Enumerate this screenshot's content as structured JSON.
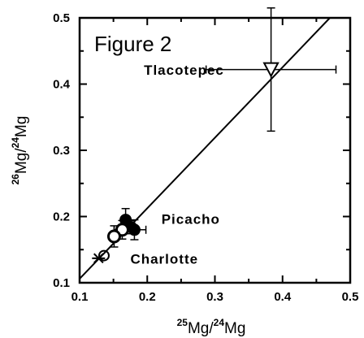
{
  "chart_data": {
    "type": "scatter",
    "title": "Figure 2",
    "xlabel": {
      "sup1": "25",
      "base1": "Mg",
      "slash": "/",
      "sup2": "24",
      "base2": "Mg"
    },
    "ylabel": {
      "sup1": "26",
      "base1": "Mg",
      "slash": "/",
      "sup2": "24",
      "base2": "Mg"
    },
    "xlim": [
      0.1,
      0.5
    ],
    "ylim": [
      0.1,
      0.5
    ],
    "x_ticks": [
      "0.1",
      "0.2",
      "0.3",
      "0.4",
      "0.5"
    ],
    "y_ticks": [
      "0.1",
      "0.2",
      "0.3",
      "0.4",
      "0.5"
    ],
    "grid": false,
    "fit_line": {
      "x": [
        0.1,
        0.47
      ],
      "y": [
        0.106,
        0.5
      ]
    },
    "annotations": [
      {
        "text": "Tlacotepec",
        "x": 0.195,
        "y": 0.414
      },
      {
        "text": "Picacho",
        "x": 0.221,
        "y": 0.189
      },
      {
        "text": "Charlotte",
        "x": 0.175,
        "y": 0.129
      }
    ],
    "series": [
      {
        "marker": "triangle-down-open",
        "points": [
          {
            "x": 0.383,
            "y": 0.422,
            "xerr": 0.096,
            "yerr": 0.093
          }
        ]
      },
      {
        "marker": "circle-filled",
        "points": [
          {
            "x": 0.168,
            "y": 0.195,
            "xerr": 0,
            "yerr": 0.017
          },
          {
            "x": 0.176,
            "y": 0.184,
            "xerr": 0,
            "yerr": 0.01
          },
          {
            "x": 0.181,
            "y": 0.18,
            "xerr": 0.017,
            "yerr": 0.015
          }
        ]
      },
      {
        "marker": "circle-open",
        "points": [
          {
            "x": 0.163,
            "y": 0.18,
            "xerr": 0.012,
            "yerr": 0.014
          },
          {
            "x": 0.151,
            "y": 0.17,
            "xerr": 0,
            "yerr": 0.016
          }
        ]
      },
      {
        "marker": "circle-open-small",
        "points": [
          {
            "x": 0.136,
            "y": 0.141,
            "xerr": 0,
            "yerr": 0
          }
        ]
      },
      {
        "marker": "asterisk",
        "points": [
          {
            "x": 0.128,
            "y": 0.137,
            "xerr": 0,
            "yerr": 0
          }
        ]
      }
    ]
  }
}
